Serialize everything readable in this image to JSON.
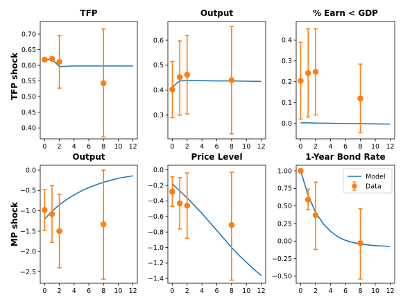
{
  "colors": {
    "model": "#1f77b4",
    "data": "#ff7f0e",
    "frame": "#000000"
  },
  "row_labels": [
    "TFP shock",
    "MP shock"
  ],
  "legend": {
    "model": "Model",
    "data": "Data",
    "placement": "upper-right"
  },
  "chart_data": [
    {
      "type": "line",
      "title": "TFP",
      "xlim": [
        -0.6,
        12.6
      ],
      "ylim": [
        0.365,
        0.74
      ],
      "xticks": [
        0,
        2,
        4,
        6,
        8,
        10,
        12
      ],
      "yticks": [
        0.4,
        0.45,
        0.5,
        0.55,
        0.6,
        0.65,
        0.7
      ],
      "ytick_labels": [
        "0.40",
        "0.45",
        "0.50",
        "0.55",
        "0.60",
        "0.65",
        "0.70"
      ],
      "model": {
        "x": [
          0,
          1,
          2,
          3,
          4,
          6,
          8,
          10,
          12
        ],
        "y": [
          0.617,
          0.62,
          0.596,
          0.597,
          0.598,
          0.598,
          0.598,
          0.598,
          0.598
        ]
      },
      "data": {
        "x": [
          0,
          1,
          2,
          8
        ],
        "y": [
          0.618,
          0.621,
          0.611,
          0.543
        ],
        "low": [
          0.618,
          0.621,
          0.527,
          0.371
        ],
        "high": [
          0.618,
          0.621,
          0.695,
          0.716
        ]
      }
    },
    {
      "type": "line",
      "title": "Output",
      "xlim": [
        -0.6,
        12.6
      ],
      "ylim": [
        0.205,
        0.675
      ],
      "xticks": [
        0,
        2,
        4,
        6,
        8,
        10,
        12
      ],
      "yticks": [
        0.3,
        0.4,
        0.5,
        0.6
      ],
      "ytick_labels": [
        "0.3",
        "0.4",
        "0.5",
        "0.6"
      ],
      "model": {
        "x": [
          0,
          0.5,
          1,
          2,
          3,
          4,
          6,
          8,
          10,
          12
        ],
        "y": [
          0.412,
          0.425,
          0.437,
          0.438,
          0.438,
          0.438,
          0.437,
          0.437,
          0.436,
          0.435
        ]
      },
      "data": {
        "x": [
          0,
          1,
          2,
          8
        ],
        "y": [
          0.403,
          0.452,
          0.462,
          0.44
        ],
        "low": [
          0.29,
          0.3,
          0.305,
          0.225
        ],
        "high": [
          0.515,
          0.597,
          0.62,
          0.655
        ]
      }
    },
    {
      "type": "line",
      "title": "% Earn < GDP",
      "xlim": [
        -0.6,
        12.6
      ],
      "ylim": [
        -0.075,
        0.49
      ],
      "xticks": [
        0,
        2,
        4,
        6,
        8,
        10,
        12
      ],
      "yticks": [
        0.0,
        0.1,
        0.2,
        0.3,
        0.4
      ],
      "ytick_labels": [
        "0.0",
        "0.1",
        "0.2",
        "0.3",
        "0.4"
      ],
      "model": {
        "x": [
          0,
          1,
          2,
          4,
          6,
          8,
          10,
          12
        ],
        "y": [
          0.002,
          0.002,
          0.001,
          0.0,
          -0.001,
          -0.002,
          -0.003,
          -0.004
        ]
      },
      "data": {
        "x": [
          0,
          1,
          2,
          8
        ],
        "y": [
          0.205,
          0.242,
          0.248,
          0.12
        ],
        "low": [
          0.02,
          0.03,
          0.04,
          -0.045
        ],
        "high": [
          0.39,
          0.455,
          0.455,
          0.285
        ]
      }
    },
    {
      "type": "line",
      "title": "Output",
      "xlim": [
        -0.6,
        12.6
      ],
      "ylim": [
        -2.78,
        0.12
      ],
      "xticks": [
        0,
        2,
        4,
        6,
        8,
        10,
        12
      ],
      "yticks": [
        0.0,
        -0.5,
        -1.0,
        -1.5,
        -2.0,
        -2.5
      ],
      "ytick_labels": [
        "0.0",
        "−0.5",
        "−1.0",
        "−1.5",
        "−2.0",
        "−2.5"
      ],
      "model": {
        "x": [
          0,
          1,
          2,
          3,
          4,
          5,
          6,
          7,
          8,
          9,
          10,
          11,
          12
        ],
        "y": [
          -1.2,
          -1.01,
          -0.85,
          -0.72,
          -0.61,
          -0.51,
          -0.43,
          -0.36,
          -0.3,
          -0.25,
          -0.2,
          -0.17,
          -0.14
        ]
      },
      "data": {
        "x": [
          0,
          1,
          2,
          8
        ],
        "y": [
          -0.98,
          -1.08,
          -1.5,
          -1.33
        ],
        "low": [
          -1.48,
          -1.78,
          -2.4,
          -2.68
        ],
        "high": [
          -0.48,
          -0.38,
          -0.6,
          0.0
        ]
      }
    },
    {
      "type": "line",
      "title": "Price Level",
      "xlim": [
        -0.6,
        12.6
      ],
      "ylim": [
        -1.46,
        0.06
      ],
      "xticks": [
        0,
        2,
        4,
        6,
        8,
        10,
        12
      ],
      "yticks": [
        0.0,
        -0.2,
        -0.4,
        -0.6,
        -0.8,
        -1.0,
        -1.2,
        -1.4
      ],
      "ytick_labels": [
        "0.0",
        "−0.2",
        "−0.4",
        "−0.6",
        "−0.8",
        "−1.0",
        "−1.2",
        "−1.4"
      ],
      "model": {
        "x": [
          0,
          1,
          2,
          3,
          4,
          5,
          6,
          7,
          8,
          9,
          10,
          11,
          12
        ],
        "y": [
          -0.18,
          -0.27,
          -0.36,
          -0.46,
          -0.56,
          -0.67,
          -0.78,
          -0.89,
          -1.0,
          -1.1,
          -1.19,
          -1.28,
          -1.36
        ]
      },
      "data": {
        "x": [
          0,
          1,
          2,
          8
        ],
        "y": [
          -0.28,
          -0.43,
          -0.46,
          -0.71
        ],
        "low": [
          -0.47,
          -0.76,
          -0.88,
          -1.42
        ],
        "high": [
          -0.09,
          -0.1,
          -0.04,
          -0.03
        ]
      }
    },
    {
      "type": "line",
      "title": "1-Year Bond Rate",
      "xlim": [
        -0.6,
        12.6
      ],
      "ylim": [
        -0.6,
        1.08
      ],
      "xticks": [
        0,
        2,
        4,
        6,
        8,
        10,
        12
      ],
      "yticks": [
        1.0,
        0.75,
        0.5,
        0.25,
        0.0,
        -0.25,
        -0.5
      ],
      "ytick_labels": [
        "1.00",
        "0.75",
        "0.50",
        "0.25",
        "0.00",
        "−0.25",
        "−0.50"
      ],
      "model": {
        "x": [
          0,
          1,
          2,
          3,
          4,
          5,
          6,
          7,
          8,
          9,
          10,
          11,
          12
        ],
        "y": [
          1.0,
          0.65,
          0.41,
          0.25,
          0.14,
          0.06,
          0.01,
          -0.02,
          -0.04,
          -0.055,
          -0.065,
          -0.07,
          -0.075
        ]
      },
      "data": {
        "x": [
          0,
          1,
          2,
          8
        ],
        "y": [
          1.0,
          0.59,
          0.37,
          -0.03
        ],
        "low": [
          1.0,
          0.45,
          -0.12,
          -0.54
        ],
        "high": [
          1.0,
          0.74,
          0.84,
          0.46
        ]
      }
    }
  ]
}
